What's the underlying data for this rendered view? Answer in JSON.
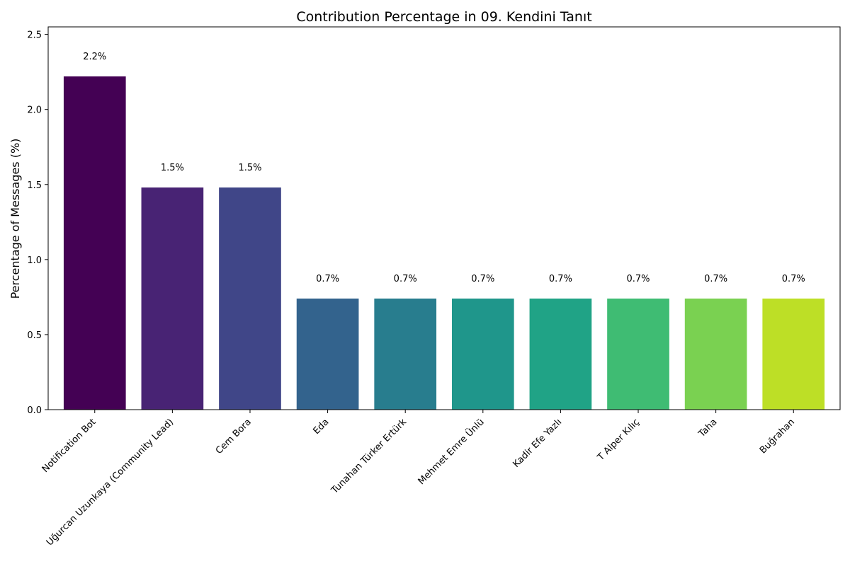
{
  "chart_data": {
    "type": "bar",
    "title": "Contribution Percentage in 09. Kendini Tanıt",
    "xlabel": "",
    "ylabel": "Percentage of Messages (%)",
    "ylim": [
      0,
      2.55
    ],
    "yticks": [
      0.0,
      0.5,
      1.0,
      1.5,
      2.0,
      2.5
    ],
    "ytick_labels": [
      "0.0",
      "0.5",
      "1.0",
      "1.5",
      "2.0",
      "2.5"
    ],
    "grid": false,
    "legend": "none",
    "categories": [
      "Notification Bot",
      "Uğurcan Uzunkaya (Community Lead)",
      "Cem Bora",
      "Eda",
      "Tunahan Türker Ertürk",
      "Mehmet Emre Ünlü",
      "Kadir Efe Yazlı",
      "T Alper Kılıç",
      "Taha",
      "Buğrahan"
    ],
    "values": [
      2.22,
      1.48,
      1.48,
      0.74,
      0.74,
      0.74,
      0.74,
      0.74,
      0.74,
      0.74
    ],
    "data_labels": [
      "2.2%",
      "1.5%",
      "1.5%",
      "0.7%",
      "0.7%",
      "0.7%",
      "0.7%",
      "0.7%",
      "0.7%",
      "0.7%"
    ],
    "colors": [
      "#440154",
      "#482374",
      "#404688",
      "#33638d",
      "#287d8e",
      "#1f968b",
      "#20a386",
      "#3fbc73",
      "#7ad151",
      "#bddf26"
    ]
  }
}
